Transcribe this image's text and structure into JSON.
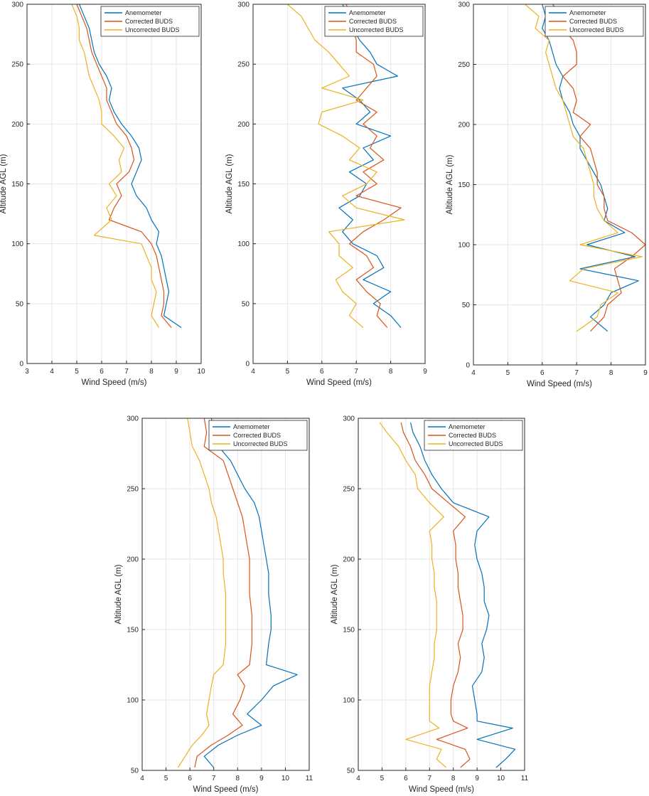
{
  "colors": {
    "anemometer": "#0072bd",
    "corrected": "#d95319",
    "uncorrected": "#edb120",
    "grid": "#e6e6e6",
    "axis": "#262626"
  },
  "chart_data": [
    {
      "type": "line",
      "panel": "top-left",
      "xlabel": "Wind Speed (m/s)",
      "ylabel": "Altitude AGL (m)",
      "xlim": [
        3,
        10
      ],
      "ylim": [
        0,
        300
      ],
      "xticks": [
        3,
        4,
        5,
        6,
        7,
        8,
        9,
        10
      ],
      "yticks": [
        0,
        50,
        100,
        150,
        200,
        250,
        300
      ],
      "grid": true,
      "legend_position": "top-right",
      "series": [
        {
          "name": "Anemometer",
          "color_key": "anemometer",
          "altitude": [
            30,
            40,
            50,
            60,
            70,
            80,
            90,
            100,
            110,
            120,
            130,
            140,
            150,
            160,
            170,
            180,
            190,
            200,
            210,
            220,
            230,
            240,
            250,
            260,
            270,
            280,
            290,
            300
          ],
          "speed": [
            9.2,
            8.5,
            8.6,
            8.7,
            8.6,
            8.5,
            8.4,
            8.2,
            8.3,
            8.0,
            7.8,
            7.4,
            7.2,
            7.4,
            7.6,
            7.5,
            7.2,
            6.8,
            6.5,
            6.3,
            6.4,
            6.2,
            5.9,
            5.7,
            5.6,
            5.5,
            5.3,
            5.1
          ]
        },
        {
          "name": "Corrected BUDS",
          "color_key": "corrected",
          "altitude": [
            30,
            40,
            50,
            60,
            70,
            80,
            90,
            100,
            110,
            120,
            130,
            140,
            150,
            160,
            170,
            180,
            190,
            200,
            210,
            220,
            230,
            240,
            250,
            260,
            270,
            280,
            290,
            300
          ],
          "speed": [
            8.8,
            8.4,
            8.5,
            8.5,
            8.4,
            8.3,
            8.2,
            8.0,
            7.6,
            6.3,
            6.5,
            6.8,
            6.6,
            7.1,
            7.3,
            7.2,
            7.0,
            6.6,
            6.4,
            6.2,
            6.2,
            6.0,
            5.8,
            5.6,
            5.5,
            5.4,
            5.2,
            5.0
          ]
        },
        {
          "name": "Uncorrected BUDS",
          "color_key": "uncorrected",
          "altitude": [
            30,
            40,
            50,
            60,
            70,
            80,
            90,
            100,
            107,
            120,
            130,
            140,
            150,
            160,
            170,
            180,
            190,
            200,
            210,
            220,
            230,
            240,
            250,
            260,
            270,
            280,
            290,
            300
          ],
          "speed": [
            8.3,
            8.0,
            8.1,
            8.2,
            8.0,
            8.0,
            7.8,
            7.6,
            5.7,
            6.4,
            6.2,
            6.6,
            6.3,
            6.8,
            6.7,
            6.9,
            6.5,
            6.0,
            6.0,
            5.9,
            5.7,
            5.5,
            5.4,
            5.3,
            5.1,
            5.1,
            5.0,
            4.8
          ]
        }
      ]
    },
    {
      "type": "line",
      "panel": "top-middle",
      "xlabel": "Wind Speed (m/s)",
      "ylabel": "Altitude AGL (m)",
      "xlim": [
        4,
        9
      ],
      "ylim": [
        0,
        300
      ],
      "xticks": [
        4,
        5,
        6,
        7,
        8,
        9
      ],
      "yticks": [
        0,
        50,
        100,
        150,
        200,
        250,
        300
      ],
      "grid": true,
      "legend_position": "top-right",
      "series": [
        {
          "name": "Anemometer",
          "color_key": "anemometer",
          "altitude": [
            30,
            40,
            50,
            60,
            70,
            80,
            90,
            100,
            110,
            120,
            130,
            140,
            150,
            160,
            170,
            180,
            190,
            200,
            210,
            220,
            230,
            240,
            250,
            260,
            270,
            280,
            290,
            300
          ],
          "speed": [
            8.3,
            8.0,
            7.5,
            8.0,
            7.2,
            7.8,
            7.6,
            6.9,
            6.6,
            6.9,
            6.5,
            7.1,
            7.3,
            6.8,
            7.5,
            7.2,
            8.0,
            7.0,
            7.4,
            7.1,
            6.6,
            8.2,
            7.6,
            7.4,
            7.1,
            6.9,
            6.8,
            6.6
          ]
        },
        {
          "name": "Corrected BUDS",
          "color_key": "corrected",
          "altitude": [
            30,
            40,
            50,
            60,
            70,
            80,
            90,
            100,
            110,
            120,
            130,
            140,
            150,
            160,
            170,
            180,
            190,
            200,
            210,
            220,
            230,
            240,
            250,
            260,
            270,
            280,
            290,
            300
          ],
          "speed": [
            7.9,
            7.6,
            7.7,
            7.3,
            7.0,
            7.5,
            7.3,
            6.8,
            7.2,
            7.8,
            8.3,
            7.0,
            7.6,
            7.2,
            7.8,
            7.4,
            7.6,
            7.2,
            7.6,
            7.0,
            7.3,
            7.6,
            7.5,
            7.0,
            7.0,
            6.9,
            6.9,
            6.7
          ]
        },
        {
          "name": "Uncorrected BUDS",
          "color_key": "uncorrected",
          "altitude": [
            30,
            40,
            50,
            60,
            70,
            80,
            90,
            100,
            110,
            120,
            130,
            140,
            150,
            160,
            170,
            180,
            190,
            200,
            210,
            220,
            230,
            240,
            250,
            260,
            270,
            280,
            290,
            300
          ],
          "speed": [
            7.2,
            6.8,
            7.0,
            6.6,
            6.4,
            6.9,
            6.5,
            6.5,
            6.2,
            8.4,
            7.0,
            6.6,
            7.3,
            7.6,
            6.8,
            7.1,
            6.6,
            5.9,
            6.0,
            7.2,
            6.0,
            6.8,
            6.5,
            6.2,
            5.8,
            5.6,
            5.4,
            5.0
          ]
        }
      ]
    },
    {
      "type": "line",
      "panel": "top-right",
      "xlabel": "Wind Speed (m/s)",
      "ylabel": "Altitude AGL (m)",
      "xlim": [
        4,
        9
      ],
      "ylim": [
        0,
        300
      ],
      "xticks": [
        4,
        5,
        6,
        7,
        8,
        9
      ],
      "yticks": [
        0,
        50,
        100,
        150,
        200,
        250,
        300
      ],
      "grid": true,
      "legend_position": "top-right",
      "series": [
        {
          "name": "Anemometer",
          "color_key": "anemometer",
          "altitude": [
            28,
            40,
            50,
            60,
            70,
            80,
            90,
            100,
            110,
            120,
            130,
            140,
            150,
            160,
            170,
            180,
            190,
            200,
            210,
            220,
            230,
            240,
            250,
            260,
            270,
            280,
            290,
            300
          ],
          "speed": [
            7.9,
            7.4,
            7.8,
            8.0,
            8.8,
            7.1,
            8.7,
            7.3,
            8.4,
            7.8,
            7.9,
            7.8,
            7.7,
            7.5,
            7.3,
            7.1,
            7.1,
            6.9,
            6.8,
            6.6,
            6.5,
            6.6,
            6.4,
            6.3,
            6.2,
            6.0,
            6.1,
            6.0
          ]
        },
        {
          "name": "Corrected BUDS",
          "color_key": "corrected",
          "altitude": [
            28,
            40,
            50,
            60,
            70,
            80,
            90,
            100,
            110,
            120,
            130,
            140,
            150,
            160,
            170,
            180,
            190,
            200,
            210,
            220,
            230,
            240,
            250,
            260,
            270,
            280,
            290,
            300
          ],
          "speed": [
            7.4,
            7.8,
            7.9,
            8.3,
            8.2,
            8.1,
            8.6,
            9.0,
            8.6,
            7.9,
            7.8,
            7.8,
            7.6,
            7.6,
            7.5,
            7.4,
            7.1,
            7.4,
            6.9,
            7.0,
            6.9,
            6.6,
            7.0,
            7.0,
            6.9,
            6.6,
            6.6,
            6.3
          ]
        },
        {
          "name": "Uncorrected BUDS",
          "color_key": "uncorrected",
          "altitude": [
            28,
            40,
            50,
            60,
            70,
            80,
            90,
            100,
            110,
            120,
            130,
            140,
            150,
            160,
            170,
            180,
            190,
            200,
            210,
            220,
            230,
            240,
            250,
            260,
            270,
            280,
            290,
            300
          ],
          "speed": [
            7.0,
            7.6,
            7.7,
            8.2,
            6.8,
            7.2,
            8.9,
            7.1,
            8.2,
            7.8,
            7.6,
            7.5,
            7.5,
            7.4,
            7.3,
            7.2,
            6.9,
            6.8,
            6.7,
            6.6,
            6.4,
            6.3,
            6.2,
            6.1,
            6.2,
            5.8,
            5.9,
            5.5
          ]
        }
      ]
    },
    {
      "type": "line",
      "panel": "bottom-left",
      "xlabel": "Wind Speed (m/s)",
      "ylabel": "Altitude AGL (m)",
      "xlim": [
        4,
        11
      ],
      "ylim": [
        50,
        300
      ],
      "xticks": [
        4,
        5,
        6,
        7,
        8,
        9,
        10,
        11
      ],
      "yticks": [
        50,
        100,
        150,
        200,
        250,
        300
      ],
      "grid": true,
      "legend_position": "top-right",
      "series": [
        {
          "name": "Anemometer",
          "color_key": "anemometer",
          "altitude": [
            52,
            60,
            68,
            75,
            82,
            90,
            100,
            110,
            118,
            125,
            140,
            150,
            160,
            175,
            190,
            200,
            210,
            220,
            230,
            240,
            250,
            260,
            270,
            280,
            290,
            300
          ],
          "speed": [
            7.0,
            6.6,
            7.2,
            8.0,
            9.0,
            8.4,
            9.0,
            9.5,
            10.5,
            9.2,
            9.3,
            9.4,
            9.4,
            9.3,
            9.3,
            9.2,
            9.1,
            9.0,
            8.9,
            8.7,
            8.3,
            8.0,
            7.7,
            7.2,
            7.0,
            6.9
          ]
        },
        {
          "name": "Corrected BUDS",
          "color_key": "corrected",
          "altitude": [
            52,
            60,
            68,
            75,
            82,
            90,
            100,
            110,
            118,
            125,
            140,
            150,
            160,
            175,
            190,
            200,
            210,
            220,
            230,
            240,
            250,
            260,
            270,
            280,
            290,
            300
          ],
          "speed": [
            6.2,
            6.3,
            6.9,
            7.6,
            8.2,
            7.8,
            8.1,
            8.3,
            8.0,
            8.5,
            8.6,
            8.6,
            8.6,
            8.5,
            8.5,
            8.5,
            8.4,
            8.3,
            8.2,
            8.0,
            7.8,
            7.6,
            7.4,
            6.6,
            6.7,
            6.6
          ]
        },
        {
          "name": "Uncorrected BUDS",
          "color_key": "uncorrected",
          "altitude": [
            52,
            60,
            68,
            75,
            82,
            90,
            100,
            110,
            118,
            125,
            140,
            150,
            160,
            175,
            190,
            200,
            210,
            220,
            230,
            240,
            250,
            260,
            270,
            280,
            290,
            300
          ],
          "speed": [
            5.5,
            5.8,
            6.1,
            6.5,
            6.8,
            6.7,
            6.8,
            6.9,
            7.0,
            7.4,
            7.5,
            7.5,
            7.5,
            7.5,
            7.4,
            7.4,
            7.3,
            7.2,
            7.1,
            6.9,
            6.8,
            6.6,
            6.4,
            6.1,
            6.0,
            5.9
          ]
        }
      ]
    },
    {
      "type": "line",
      "panel": "bottom-right",
      "xlabel": "Wind Speed (m/s)",
      "ylabel": "Altitude AGL (m)",
      "xlim": [
        4,
        11
      ],
      "ylim": [
        50,
        300
      ],
      "xticks": [
        4,
        5,
        6,
        7,
        8,
        9,
        10,
        11
      ],
      "yticks": [
        50,
        100,
        150,
        200,
        250,
        300
      ],
      "grid": true,
      "legend_position": "top-right",
      "series": [
        {
          "name": "Anemometer",
          "color_key": "anemometer",
          "altitude": [
            52,
            58,
            65,
            72,
            80,
            85,
            90,
            100,
            110,
            120,
            130,
            140,
            150,
            160,
            170,
            180,
            190,
            200,
            210,
            220,
            230,
            240,
            250,
            260,
            270,
            280,
            290,
            297
          ],
          "speed": [
            9.8,
            10.2,
            10.6,
            9.0,
            10.5,
            9.0,
            9.0,
            8.9,
            8.8,
            9.2,
            9.3,
            9.2,
            9.4,
            9.5,
            9.3,
            9.3,
            9.2,
            9.0,
            8.9,
            9.0,
            9.5,
            8.0,
            7.5,
            7.1,
            6.8,
            6.6,
            6.3,
            6.2
          ]
        },
        {
          "name": "Corrected BUDS",
          "color_key": "corrected",
          "altitude": [
            52,
            58,
            65,
            72,
            80,
            85,
            90,
            100,
            110,
            120,
            130,
            140,
            150,
            160,
            170,
            180,
            190,
            200,
            210,
            220,
            230,
            240,
            250,
            260,
            270,
            280,
            290,
            297
          ],
          "speed": [
            8.3,
            8.7,
            8.5,
            7.3,
            8.6,
            8.0,
            7.9,
            7.9,
            8.0,
            8.2,
            8.3,
            8.2,
            8.4,
            8.4,
            8.3,
            8.2,
            8.2,
            8.1,
            8.1,
            8.0,
            8.5,
            7.8,
            7.1,
            6.8,
            6.4,
            6.2,
            5.9,
            5.8
          ]
        },
        {
          "name": "Uncorrected BUDS",
          "color_key": "uncorrected",
          "altitude": [
            52,
            58,
            65,
            72,
            80,
            85,
            90,
            100,
            110,
            120,
            130,
            140,
            150,
            160,
            170,
            180,
            190,
            200,
            210,
            220,
            230,
            240,
            250,
            260,
            270,
            280,
            290,
            297
          ],
          "speed": [
            7.7,
            7.3,
            7.5,
            6.0,
            7.4,
            7.0,
            7.0,
            7.0,
            7.0,
            7.1,
            7.2,
            7.2,
            7.3,
            7.3,
            7.3,
            7.2,
            7.2,
            7.1,
            7.1,
            7.0,
            7.6,
            7.0,
            6.5,
            6.4,
            6.0,
            5.7,
            5.2,
            4.9
          ]
        }
      ]
    }
  ]
}
